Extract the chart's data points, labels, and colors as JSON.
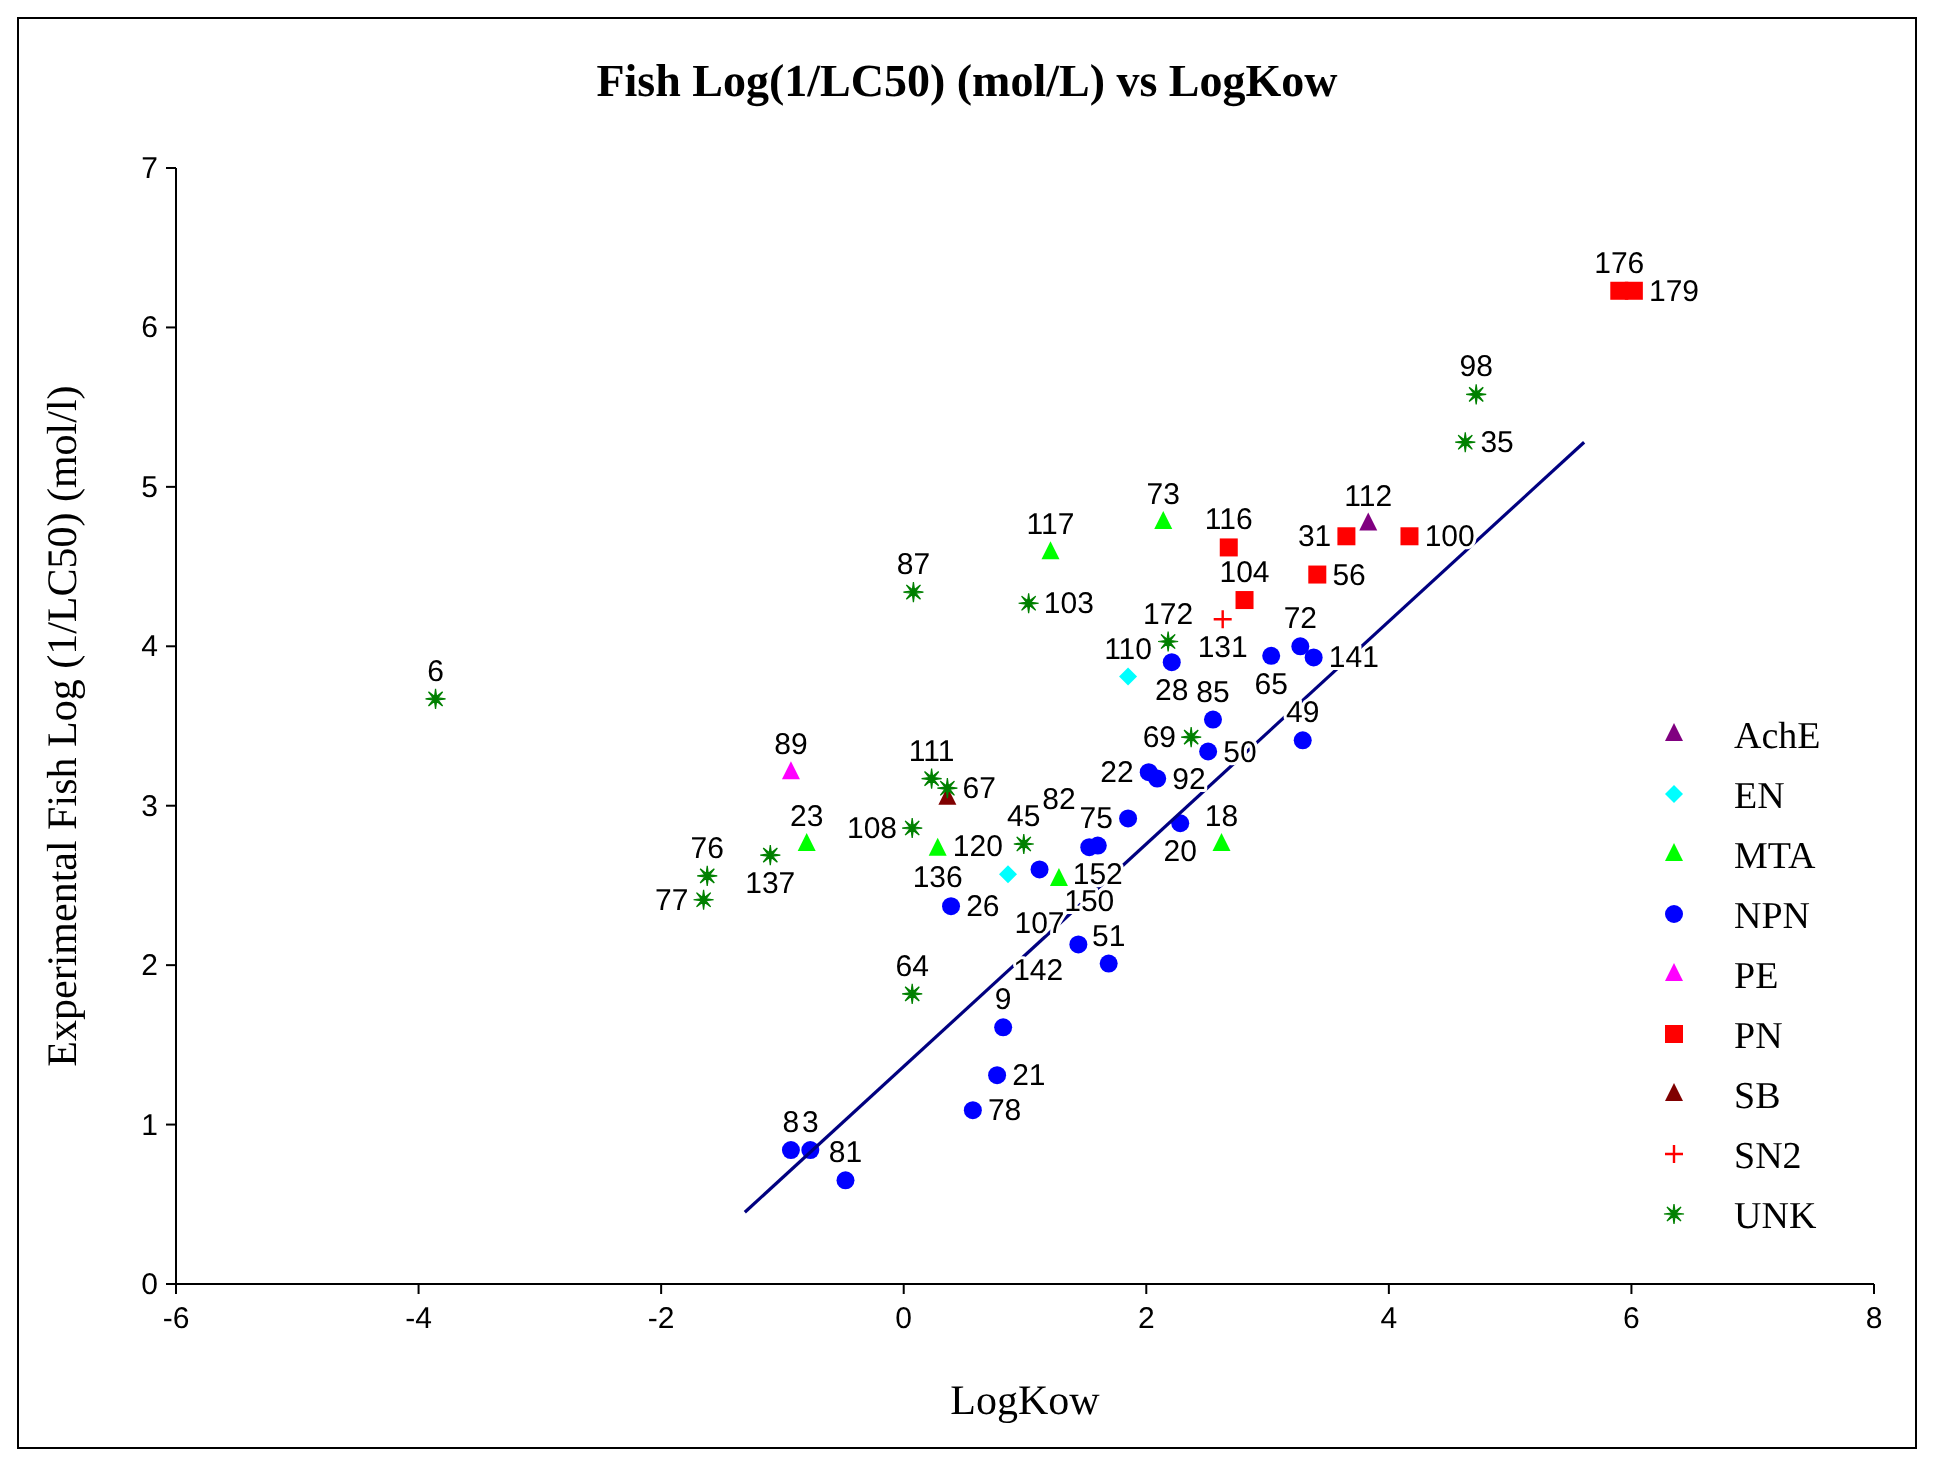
{
  "chart_data": {
    "type": "scatter",
    "title": "Fish Log(1/LC50) (mol/L) vs LogKow",
    "xlabel": "LogKow",
    "ylabel": "Experimental Fish Log (1/LC50) (mol/l)",
    "xlim": [
      -6,
      8
    ],
    "xticks": [
      -6,
      -4,
      -2,
      0,
      2,
      4,
      6,
      8
    ],
    "ylim": [
      0,
      7
    ],
    "yticks": [
      0,
      1,
      2,
      3,
      4,
      5,
      6,
      7
    ],
    "grid": false,
    "legend": "right",
    "series": [
      {
        "name": "AchE",
        "color": "#800080",
        "marker": "triangle",
        "x": [
          3.83
        ],
        "values": [
          4.77
        ]
      },
      {
        "name": "EN",
        "color": "#00ffff",
        "marker": "diamond",
        "x": [
          1.85,
          0.86
        ],
        "values": [
          3.81,
          2.57
        ]
      },
      {
        "name": "MTA",
        "color": "#00ff00",
        "marker": "triangle",
        "x": [
          -0.8,
          0.28,
          1.21,
          2.14,
          1.28,
          2.62
        ],
        "values": [
          2.76,
          2.73,
          4.59,
          4.78,
          2.54,
          2.76
        ]
      },
      {
        "name": "NPN",
        "color": "#0000ff",
        "marker": "circle",
        "x": [
          -0.93,
          -0.77,
          -0.48,
          0.57,
          0.77,
          0.82,
          1.44,
          1.69,
          0.39,
          1.12,
          1.53,
          1.6,
          1.85,
          2.02,
          2.09,
          2.28,
          2.51,
          2.55,
          2.21,
          3.03,
          3.27,
          3.38,
          3.29
        ],
        "values": [
          0.84,
          0.84,
          0.65,
          1.09,
          1.31,
          1.61,
          2.13,
          2.01,
          2.37,
          2.6,
          2.74,
          2.75,
          2.92,
          3.21,
          3.17,
          2.89,
          3.34,
          3.54,
          3.9,
          3.94,
          4.0,
          3.93,
          3.41
        ]
      },
      {
        "name": "PE",
        "color": "#ff00ff",
        "marker": "triangle",
        "x": [
          -0.93
        ],
        "values": [
          3.21
        ]
      },
      {
        "name": "PN",
        "color": "#ff0000",
        "marker": "square",
        "x": [
          2.68,
          2.81,
          3.41,
          3.65,
          4.17,
          5.9,
          6.02
        ],
        "values": [
          4.62,
          4.29,
          4.45,
          4.69,
          4.69,
          6.23,
          6.23
        ]
      },
      {
        "name": "SB",
        "color": "#800000",
        "marker": "triangle",
        "x": [
          0.36
        ],
        "values": [
          3.05
        ]
      },
      {
        "name": "SN2",
        "color": "#ff0000",
        "marker": "cross",
        "x": [
          2.63
        ],
        "values": [
          4.17
        ]
      },
      {
        "name": "UNK",
        "color": "#008000",
        "marker": "star",
        "x": [
          -3.86,
          -1.62,
          -1.65,
          -1.1,
          0.23,
          0.36,
          0.07,
          0.07,
          0.08,
          1.03,
          2.18,
          2.37,
          0.99,
          4.72,
          4.63
        ],
        "values": [
          3.67,
          2.56,
          2.41,
          2.69,
          3.17,
          3.11,
          2.86,
          1.82,
          4.34,
          4.27,
          4.03,
          3.43,
          2.76,
          5.58,
          5.28
        ]
      },
      {
        "type": "line",
        "color": "#000080",
        "marker": "none",
        "x": [
          -1.31,
          5.61
        ],
        "values": [
          0.45,
          5.28
        ]
      }
    ],
    "annotations": [
      {
        "text": "112",
        "x": 3.83,
        "y": 4.77
      },
      {
        "text": "110",
        "x": 1.85,
        "y": 3.81
      },
      {
        "text": "120",
        "x": 0.86,
        "y": 2.57
      },
      {
        "text": "23",
        "x": -0.8,
        "y": 2.76
      },
      {
        "text": "136",
        "x": 0.28,
        "y": 2.73
      },
      {
        "text": "117",
        "x": 1.21,
        "y": 4.59
      },
      {
        "text": "73",
        "x": 2.14,
        "y": 4.78
      },
      {
        "text": "82",
        "x": 1.28,
        "y": 2.54
      },
      {
        "text": "18",
        "x": 2.62,
        "y": 2.76
      },
      {
        "text": "8",
        "x": -0.93,
        "y": 0.84
      },
      {
        "text": "3",
        "x": -0.77,
        "y": 0.84
      },
      {
        "text": "81",
        "x": -0.48,
        "y": 0.65
      },
      {
        "text": "78",
        "x": 0.57,
        "y": 1.09
      },
      {
        "text": "21",
        "x": 0.77,
        "y": 1.31
      },
      {
        "text": "9",
        "x": 0.82,
        "y": 1.61
      },
      {
        "text": "142",
        "x": 1.44,
        "y": 2.13
      },
      {
        "text": "51",
        "x": 1.69,
        "y": 2.01
      },
      {
        "text": "26",
        "x": 0.39,
        "y": 2.37
      },
      {
        "text": "107",
        "x": 1.12,
        "y": 2.6
      },
      {
        "text": "150",
        "x": 1.53,
        "y": 2.74
      },
      {
        "text": "152",
        "x": 1.6,
        "y": 2.75
      },
      {
        "text": "75",
        "x": 1.85,
        "y": 2.92
      },
      {
        "text": "22",
        "x": 2.02,
        "y": 3.21
      },
      {
        "text": "92",
        "x": 2.09,
        "y": 3.17
      },
      {
        "text": "20",
        "x": 2.28,
        "y": 2.89
      },
      {
        "text": "50",
        "x": 2.51,
        "y": 3.34
      },
      {
        "text": "85",
        "x": 2.55,
        "y": 3.54
      },
      {
        "text": "28",
        "x": 2.21,
        "y": 3.9
      },
      {
        "text": "65",
        "x": 3.03,
        "y": 3.94
      },
      {
        "text": "72",
        "x": 3.27,
        "y": 4.0
      },
      {
        "text": "141",
        "x": 3.38,
        "y": 3.93
      },
      {
        "text": "49",
        "x": 3.29,
        "y": 3.41
      },
      {
        "text": "89",
        "x": -0.93,
        "y": 3.21
      },
      {
        "text": "116",
        "x": 2.68,
        "y": 4.62
      },
      {
        "text": "104",
        "x": 2.81,
        "y": 4.29
      },
      {
        "text": "56",
        "x": 3.41,
        "y": 4.45
      },
      {
        "text": "31",
        "x": 3.65,
        "y": 4.69
      },
      {
        "text": "100",
        "x": 4.17,
        "y": 4.69
      },
      {
        "text": "176",
        "x": 5.9,
        "y": 6.23
      },
      {
        "text": "179",
        "x": 6.02,
        "y": 6.23
      },
      {
        "text": "131",
        "x": 2.63,
        "y": 4.17
      },
      {
        "text": "6",
        "x": -3.86,
        "y": 3.67
      },
      {
        "text": "76",
        "x": -1.62,
        "y": 2.56
      },
      {
        "text": "77",
        "x": -1.65,
        "y": 2.41
      },
      {
        "text": "137",
        "x": -1.1,
        "y": 2.69
      },
      {
        "text": "111",
        "x": 0.23,
        "y": 3.17
      },
      {
        "text": "67",
        "x": 0.36,
        "y": 3.11
      },
      {
        "text": "108",
        "x": 0.07,
        "y": 2.86
      },
      {
        "text": "64",
        "x": 0.07,
        "y": 1.82
      },
      {
        "text": "87",
        "x": 0.08,
        "y": 4.34
      },
      {
        "text": "103",
        "x": 1.03,
        "y": 4.27
      },
      {
        "text": "172",
        "x": 2.18,
        "y": 4.03
      },
      {
        "text": "69",
        "x": 2.37,
        "y": 3.43
      },
      {
        "text": "45",
        "x": 0.99,
        "y": 2.76
      },
      {
        "text": "98",
        "x": 4.72,
        "y": 5.58
      },
      {
        "text": "35",
        "x": 4.63,
        "y": 5.28
      }
    ]
  }
}
